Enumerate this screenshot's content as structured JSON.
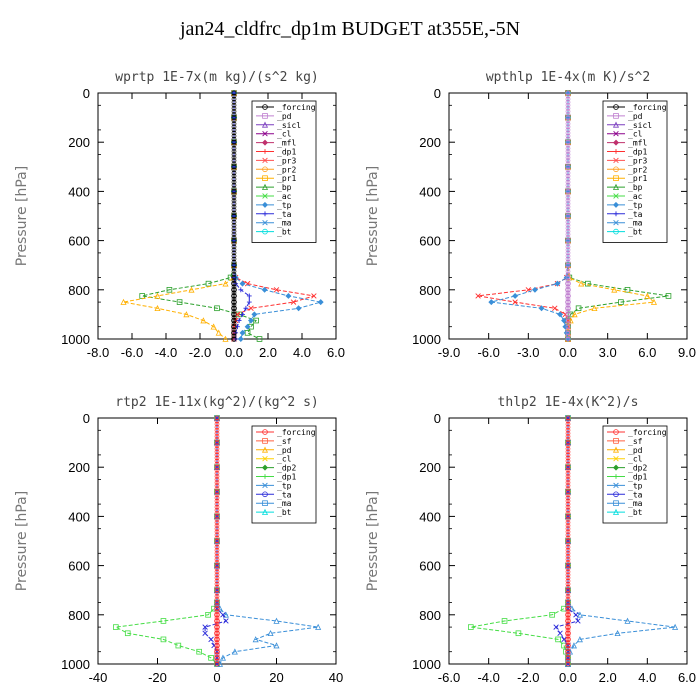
{
  "title": "jan24_cldfrc_dp1m  BUDGET at355E,-5N",
  "chart_data": [
    {
      "type": "line",
      "title": "wprtp  1E-7x(m kg)/(s^2 kg)",
      "ylabel": "Pressure [hPa]",
      "xlim": [
        -8,
        6
      ],
      "ylim": [
        1000,
        0
      ],
      "xticks": [
        "-8.0",
        "-6.0",
        "-4.0",
        "-2.0",
        "0.0",
        "2.0",
        "4.0",
        "6.0"
      ],
      "yticks": [
        "0",
        "200",
        "400",
        "600",
        "800",
        "1000"
      ],
      "legend_position": "top-right",
      "legend": [
        "_forcing",
        "_pd",
        "_sicl",
        "_cl",
        "_mfl",
        "_dp1",
        "_pr3",
        "_pr2",
        "_pr1",
        "_bp",
        "_ac",
        "_tp",
        "_ta",
        "_ma",
        "_bt"
      ],
      "pressure": [
        0,
        100,
        200,
        300,
        400,
        500,
        600,
        700,
        750,
        775,
        800,
        825,
        850,
        875,
        900,
        925,
        950,
        975,
        1000
      ],
      "series": [
        {
          "name": "_forcing",
          "color": "#000000",
          "values": [
            0,
            0,
            0,
            0,
            0,
            0,
            0,
            0,
            0,
            0,
            0,
            0,
            0,
            0,
            0,
            0,
            0,
            0,
            0
          ]
        },
        {
          "name": "_bp",
          "color": "#2ca02c",
          "values": [
            0,
            0,
            0,
            0,
            0,
            0,
            0,
            0,
            -0.2,
            -1.5,
            -3.8,
            -5.4,
            -3.2,
            -1.0,
            0.3,
            1.3,
            1.0,
            0.8,
            1.5
          ]
        },
        {
          "name": "_pr1",
          "color": "#ffb000",
          "values": [
            0,
            0,
            0,
            0,
            0,
            0,
            0,
            0,
            0,
            -0.5,
            -2.5,
            -4.5,
            -6.5,
            -4.5,
            -2.8,
            -1.8,
            -1.2,
            -0.9,
            -0.5
          ]
        },
        {
          "name": "_dp1",
          "color": "#ff3030",
          "values": [
            0,
            0,
            0,
            0,
            0,
            0,
            0,
            0,
            0.1,
            0.8,
            2.5,
            4.7,
            3.5,
            1.0,
            0.2,
            0.1,
            0,
            0,
            0
          ]
        },
        {
          "name": "_tp",
          "color": "#3a8fd8",
          "values": [
            0,
            0,
            0,
            0,
            0,
            0,
            0,
            0,
            0.1,
            0.5,
            1.8,
            3.2,
            5.1,
            3.8,
            1.2,
            1.0,
            0.8,
            0.5,
            0.4
          ]
        },
        {
          "name": "_ta",
          "color": "#2b2bd9",
          "values": [
            0,
            0,
            0,
            0,
            0,
            0,
            0,
            0,
            0,
            0.1,
            0.4,
            0.9,
            0.9,
            0.7,
            0.5,
            0.3,
            0.2,
            0.1,
            0.1
          ]
        }
      ]
    },
    {
      "type": "line",
      "title": "wpthlp  1E-4x(m K)/s^2",
      "ylabel": "Pressure [hPa]",
      "xlim": [
        -9,
        9
      ],
      "ylim": [
        1000,
        0
      ],
      "xticks": [
        "-9.0",
        "-6.0",
        "-3.0",
        "0.0",
        "3.0",
        "6.0",
        "9.0"
      ],
      "yticks": [
        "0",
        "200",
        "400",
        "600",
        "800",
        "1000"
      ],
      "legend_position": "top-right",
      "legend": [
        "_forcing",
        "_pd",
        "_sicl",
        "_cl",
        "_mfl",
        "_dp1",
        "_pr3",
        "_pr2",
        "_pr1",
        "_bp",
        "_ac",
        "_tp",
        "_ta",
        "_ma",
        "_bt"
      ],
      "pressure": [
        0,
        100,
        200,
        300,
        400,
        500,
        600,
        700,
        750,
        775,
        800,
        825,
        850,
        875,
        900,
        925,
        950,
        975,
        1000
      ],
      "series": [
        {
          "name": "_forcing",
          "color": "#c080d0",
          "values": [
            0,
            0,
            0,
            0,
            0,
            0,
            0,
            0,
            0,
            0,
            0,
            0,
            0,
            0,
            0,
            0,
            0,
            0,
            0
          ]
        },
        {
          "name": "_bp",
          "color": "#2ca02c",
          "values": [
            0,
            0,
            0,
            0,
            0,
            0,
            0,
            0,
            0.1,
            1.5,
            4.5,
            7.6,
            4.0,
            0.8,
            0.2,
            0,
            0,
            0,
            0
          ]
        },
        {
          "name": "_pr1",
          "color": "#ffb000",
          "values": [
            0,
            0,
            0,
            0,
            0,
            0,
            0,
            0,
            0.1,
            1.0,
            3.5,
            6.0,
            6.5,
            2.0,
            0.5,
            0.2,
            0,
            0,
            0
          ]
        },
        {
          "name": "_dp1",
          "color": "#ff3030",
          "values": [
            0,
            0,
            0,
            0,
            0,
            0,
            0,
            0,
            -0.1,
            -0.8,
            -3.0,
            -6.8,
            -4.0,
            -1.0,
            -0.2,
            0,
            0,
            0,
            0
          ]
        },
        {
          "name": "_tp",
          "color": "#3a8fd8",
          "values": [
            0,
            0,
            0,
            0,
            0,
            0,
            0,
            0,
            -0.1,
            -0.8,
            -2.5,
            -4.0,
            -5.8,
            -2.0,
            -0.6,
            -0.3,
            -0.2,
            -0.1,
            0
          ]
        }
      ]
    },
    {
      "type": "line",
      "title": "rtp2  1E-11x(kg^2)/(kg^2 s)",
      "ylabel": "Pressure [hPa]",
      "xlim": [
        -40,
        40
      ],
      "ylim": [
        1000,
        0
      ],
      "xticks": [
        "-40",
        "-20",
        "0",
        "20",
        "40"
      ],
      "yticks": [
        "0",
        "200",
        "400",
        "600",
        "800",
        "1000"
      ],
      "legend_position": "top-right",
      "legend": [
        "_forcing",
        "_sf",
        "_pd",
        "_cl",
        "_dp2",
        "_dp1",
        "_tp",
        "_ta",
        "_ma",
        "_bt"
      ],
      "pressure": [
        0,
        100,
        200,
        300,
        400,
        500,
        600,
        700,
        750,
        775,
        800,
        825,
        850,
        875,
        900,
        925,
        950,
        975,
        1000
      ],
      "series": [
        {
          "name": "_forcing",
          "color": "#ff3030",
          "values": [
            0,
            0,
            0,
            0,
            0,
            0,
            0,
            0,
            0,
            0,
            0,
            0,
            0,
            0,
            0,
            0,
            0,
            0,
            0
          ]
        },
        {
          "name": "_dp1",
          "color": "#44dd44",
          "values": [
            0,
            0,
            0,
            0,
            0,
            0,
            0,
            0,
            0,
            -1,
            -3,
            -18,
            -34,
            -30,
            -18,
            -13,
            -6,
            -2,
            0
          ]
        },
        {
          "name": "_tp",
          "color": "#3a8fd8",
          "values": [
            0,
            0,
            0,
            0,
            0,
            0,
            0,
            0,
            0,
            1,
            3,
            20,
            34,
            18,
            13,
            20,
            6,
            2,
            1
          ]
        },
        {
          "name": "_ta",
          "color": "#2b2bd9",
          "values": [
            0,
            0,
            0,
            0,
            0,
            0,
            0,
            0,
            0,
            0,
            2,
            3,
            -4,
            -4,
            -2,
            -1,
            0,
            0,
            0
          ]
        }
      ]
    },
    {
      "type": "line",
      "title": "thlp2  1E-4x(K^2)/s",
      "ylabel": "Pressure [hPa]",
      "xlim": [
        -6,
        6
      ],
      "ylim": [
        1000,
        0
      ],
      "xticks": [
        "-6.0",
        "-4.0",
        "-2.0",
        "0.0",
        "2.0",
        "4.0",
        "6.0"
      ],
      "yticks": [
        "0",
        "200",
        "400",
        "600",
        "800",
        "1000"
      ],
      "legend_position": "top-right",
      "legend": [
        "_forcing",
        "_sf",
        "_pd",
        "_cl",
        "_dp2",
        "_dp1",
        "_tp",
        "_ta",
        "_ma",
        "_bt"
      ],
      "pressure": [
        0,
        100,
        200,
        300,
        400,
        500,
        600,
        700,
        750,
        775,
        800,
        825,
        850,
        875,
        900,
        925,
        950,
        975,
        1000
      ],
      "series": [
        {
          "name": "_forcing",
          "color": "#ff3030",
          "values": [
            0,
            0,
            0,
            0,
            0,
            0,
            0,
            0,
            0,
            0,
            0,
            0,
            0,
            0,
            0,
            0,
            0,
            0,
            0
          ]
        },
        {
          "name": "_dp1",
          "color": "#44dd44",
          "values": [
            0,
            0,
            0,
            0,
            0,
            0,
            0,
            0,
            0,
            -0.2,
            -0.8,
            -3.2,
            -4.9,
            -2.5,
            -0.5,
            -0.2,
            -0.1,
            0,
            0
          ]
        },
        {
          "name": "_tp",
          "color": "#3a8fd8",
          "values": [
            0,
            0,
            0,
            0,
            0,
            0,
            0,
            0,
            0,
            0.2,
            0.6,
            3.0,
            5.4,
            2.5,
            0.6,
            0.3,
            0.1,
            0,
            0
          ]
        },
        {
          "name": "_ta",
          "color": "#2b2bd9",
          "values": [
            0,
            0,
            0,
            0,
            0,
            0,
            0,
            0,
            0,
            0,
            0.4,
            0.5,
            -0.6,
            -0.4,
            -0.2,
            0,
            0,
            0,
            0
          ]
        }
      ]
    }
  ]
}
